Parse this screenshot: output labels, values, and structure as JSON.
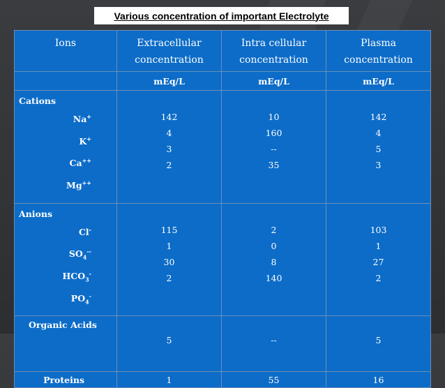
{
  "title": "Various concentration of important Electrolyte",
  "header": {
    "col1": "Ions",
    "col2_line1": "Extracellular",
    "col2_line2": "concentration",
    "col3_line1": "Intra cellular",
    "col3_line2": "concentration",
    "col4_line1": "Plasma",
    "col4_line2": "concentration"
  },
  "units": {
    "ec": "mEq/L",
    "ic": "mEq/L",
    "pl": "mEq/L"
  },
  "cations": {
    "label": "Cations",
    "ions": [
      {
        "base": "Na",
        "sup": "+",
        "sub": "",
        "sup2": ""
      },
      {
        "base": "K",
        "sup": "+",
        "sub": "",
        "sup2": ""
      },
      {
        "base": "Ca",
        "sup": "++",
        "sub": "",
        "sup2": ""
      },
      {
        "base": "Mg",
        "sup": "++",
        "sub": "",
        "sup2": ""
      }
    ],
    "extracellular": [
      "142",
      "4",
      "3",
      "2"
    ],
    "intracellular": [
      "10",
      "160",
      "--",
      "35"
    ],
    "plasma": [
      "142",
      "4",
      "5",
      "3"
    ]
  },
  "anions": {
    "label": "Anions",
    "ions": [
      {
        "base": "Cl",
        "sup": "-",
        "sub": "",
        "sup2": ""
      },
      {
        "base": "SO",
        "sup": "",
        "sub": "4",
        "sup2": "--"
      },
      {
        "base": "HCO",
        "sup": "",
        "sub": "3",
        "sup2": "-"
      },
      {
        "base": "PO",
        "sup": "",
        "sub": "4",
        "sup2": "-"
      }
    ],
    "extracellular": [
      "115",
      "1",
      "30",
      "2"
    ],
    "intracellular": [
      "2",
      "0",
      "8",
      "140"
    ],
    "plasma": [
      "103",
      "1",
      "27",
      "2"
    ]
  },
  "organic_acids": {
    "label": "Organic Acids",
    "ec": "5",
    "ic": "--",
    "pl": "5"
  },
  "proteins": {
    "label": "Proteins",
    "ec": "1",
    "ic": "55",
    "pl": "16"
  },
  "colors": {
    "table_bg": "#0c6cc8",
    "grid": "#6b8eb8",
    "page_bg": "#333539"
  }
}
